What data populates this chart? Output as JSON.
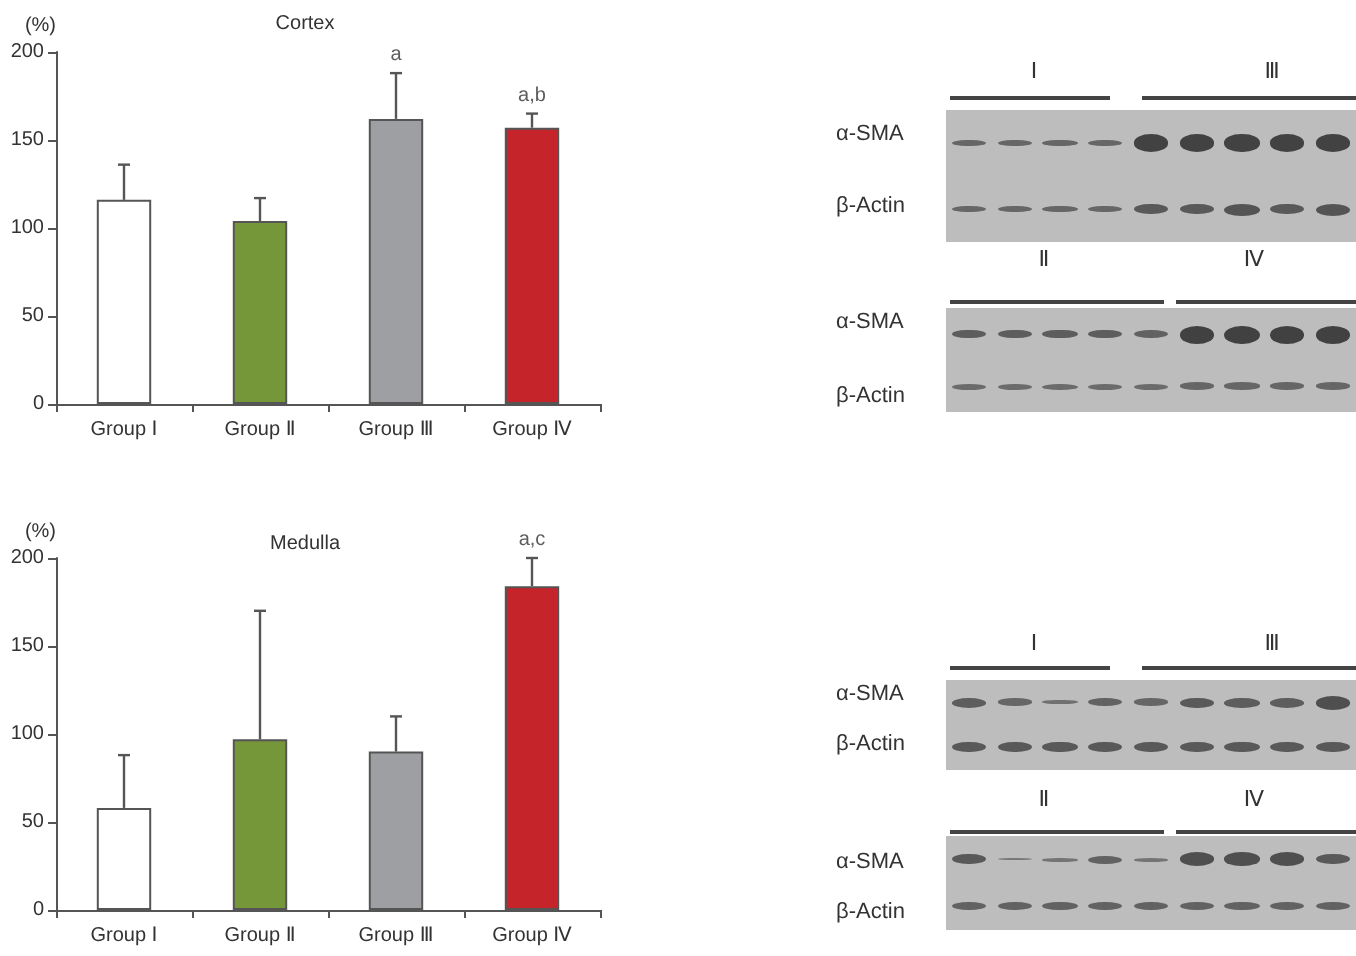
{
  "chart_data": [
    {
      "type": "bar",
      "title": "Cortex",
      "ylabel": "(%)",
      "categories": [
        "Group Ⅰ",
        "Group Ⅱ",
        "Group Ⅲ",
        "Group Ⅳ"
      ],
      "values": [
        116,
        104,
        162,
        157
      ],
      "colors": [
        "#ffffff",
        "#76963a",
        "#9d9fa2",
        "#c4242a"
      ],
      "errors": [
        [
          116,
          136
        ],
        [
          104,
          117
        ],
        [
          162,
          188
        ],
        [
          157,
          165
        ]
      ],
      "ylim": [
        0,
        200
      ],
      "yticks": [
        0,
        50,
        100,
        150,
        200
      ],
      "grid": false,
      "annotations": [
        {
          "text": "a",
          "x": "Group Ⅲ",
          "y": 188
        },
        {
          "text": "a,b",
          "x": "Group Ⅳ",
          "y": 165
        }
      ]
    },
    {
      "type": "other",
      "annotations": [
        "Ⅰ",
        "Ⅲ",
        "α-SMA",
        "β-Actin",
        "Ⅱ",
        "Ⅳ",
        "α-SMA",
        "β-Actin"
      ]
    },
    {
      "type": "bar",
      "title": "Medulla",
      "ylabel": "(%)",
      "categories": [
        "Group Ⅰ",
        "Group Ⅱ",
        "Group Ⅲ",
        "Group Ⅳ"
      ],
      "values": [
        58,
        97,
        90,
        184
      ],
      "colors": [
        "#ffffff",
        "#76963a",
        "#9d9fa2",
        "#c4242a"
      ],
      "errors": [
        [
          58,
          88
        ],
        [
          97,
          170
        ],
        [
          90,
          110
        ],
        [
          184,
          200
        ]
      ],
      "ylim": [
        0,
        200
      ],
      "yticks": [
        0,
        50,
        100,
        150,
        200
      ],
      "grid": false,
      "annotations": [
        {
          "text": "a,c",
          "x": "Group Ⅳ",
          "y": 200
        }
      ]
    },
    {
      "type": "other",
      "annotations": [
        "Ⅰ",
        "Ⅲ",
        "α-SMA",
        "β-Actin",
        "Ⅱ",
        "Ⅳ",
        "α-SMA",
        "β-Actin"
      ]
    }
  ]
}
